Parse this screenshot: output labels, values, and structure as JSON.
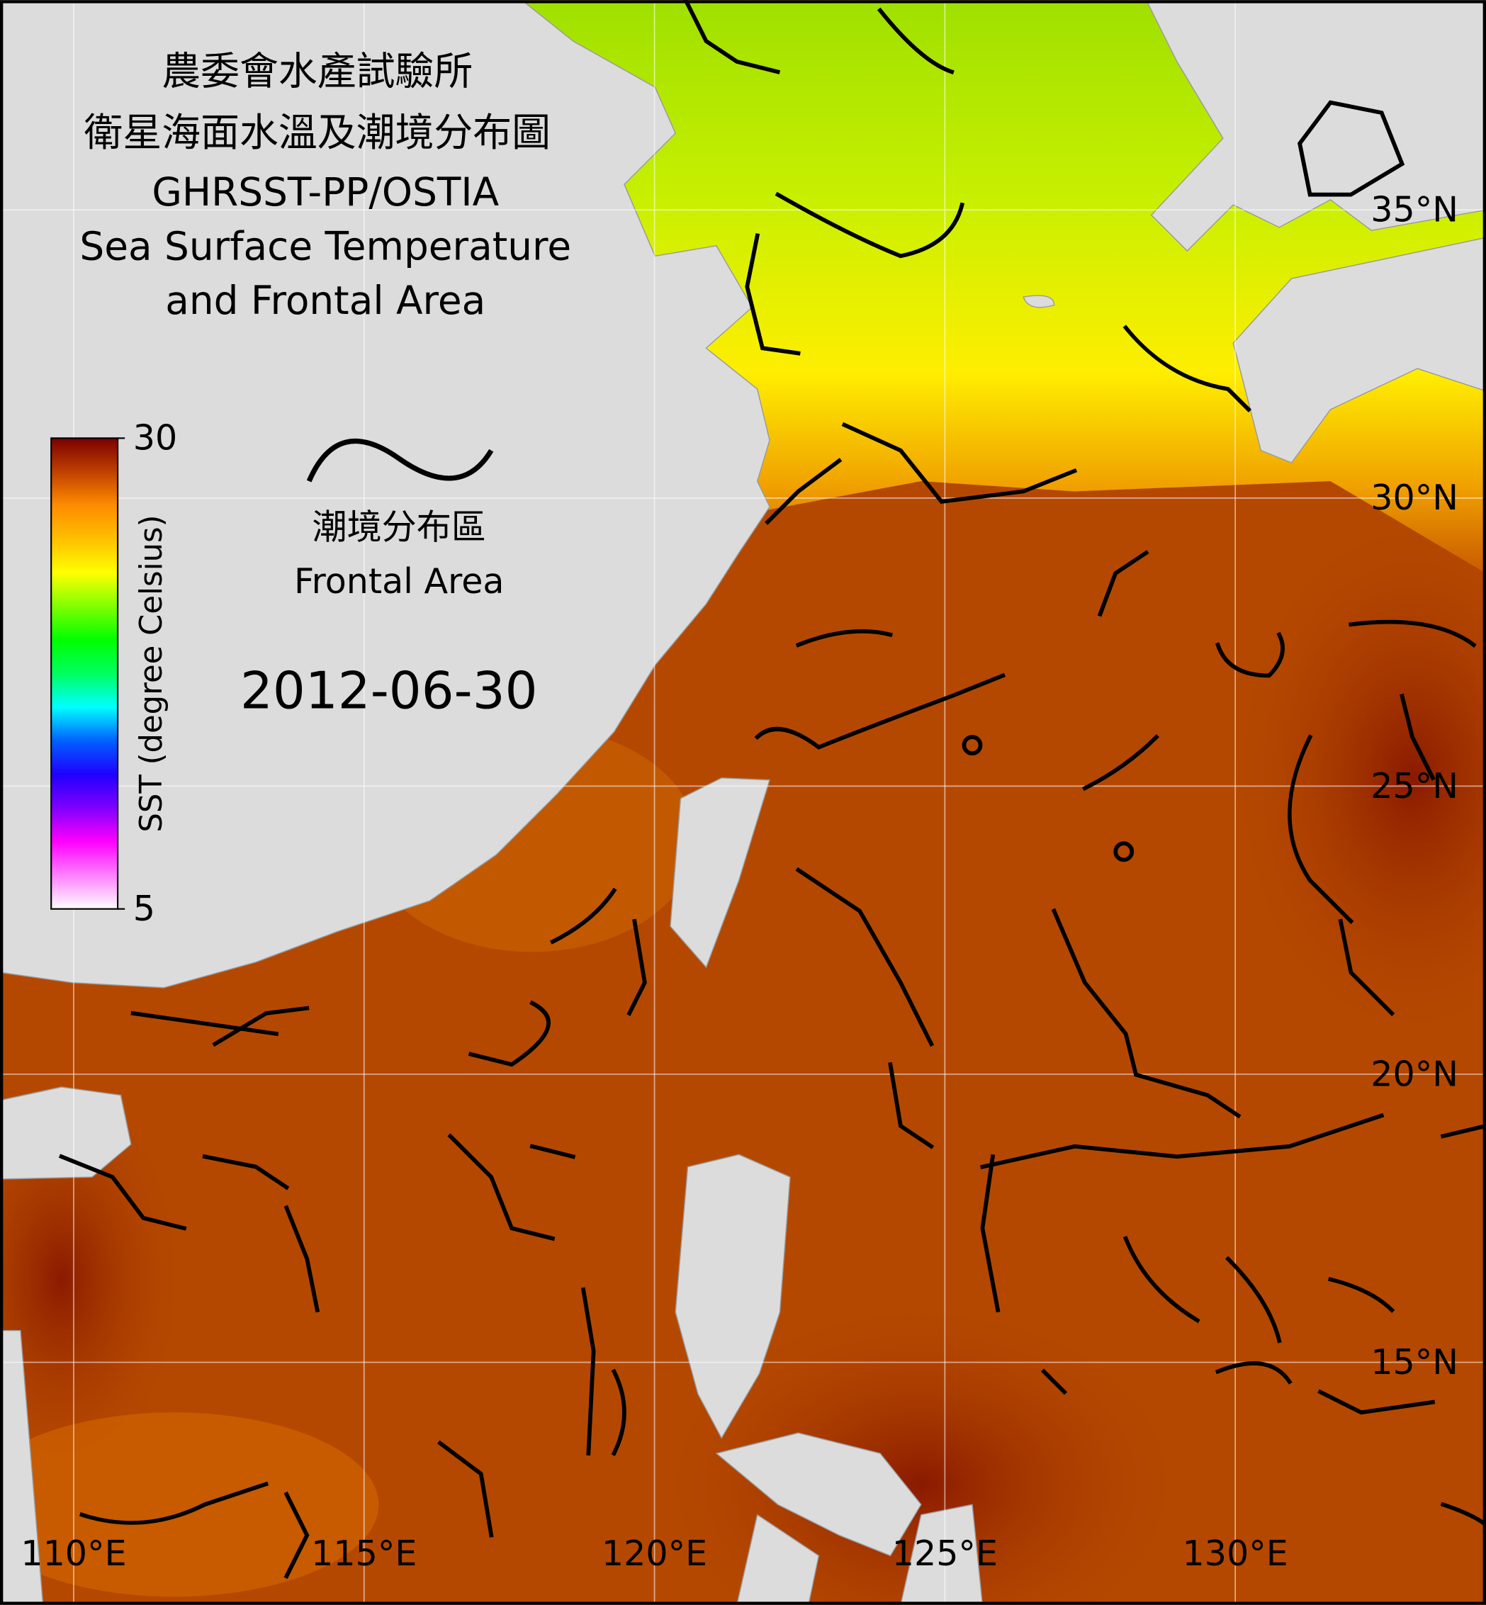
{
  "header": {
    "title_lines": [
      "農委會水產試驗所",
      "衛星海面水溫及潮境分布圖",
      "GHRSST-PP/OSTIA",
      "Sea Surface Temperature",
      "and Frontal Area"
    ]
  },
  "date": "2012-06-30",
  "legend": {
    "labels": [
      "潮境分布區",
      "Frontal Area"
    ]
  },
  "colorbar": {
    "label": "SST (degree Celsius)",
    "range": [
      5,
      30
    ],
    "ticks": [
      5,
      30
    ],
    "colors": [
      "#ffffff",
      "#ff80ff",
      "#ff00ff",
      "#8000ff",
      "#2000ff",
      "#0060ff",
      "#00ffff",
      "#00ff60",
      "#00ff00",
      "#80ff00",
      "#ffff00",
      "#ffc000",
      "#ff8c00",
      "#c04000",
      "#7a0000"
    ]
  },
  "map": {
    "longitudes": [
      {
        "value": 110,
        "label": "110°E"
      },
      {
        "value": 115,
        "label": "115°E"
      },
      {
        "value": 120,
        "label": "120°E"
      },
      {
        "value": 125,
        "label": "125°E"
      },
      {
        "value": 130,
        "label": "130°E"
      }
    ],
    "latitudes": [
      {
        "value": 35,
        "label": "35°N"
      },
      {
        "value": 30,
        "label": "30°N"
      },
      {
        "value": 25,
        "label": "25°N"
      },
      {
        "value": 20,
        "label": "20°N"
      },
      {
        "value": 15,
        "label": "15°N"
      }
    ]
  }
}
